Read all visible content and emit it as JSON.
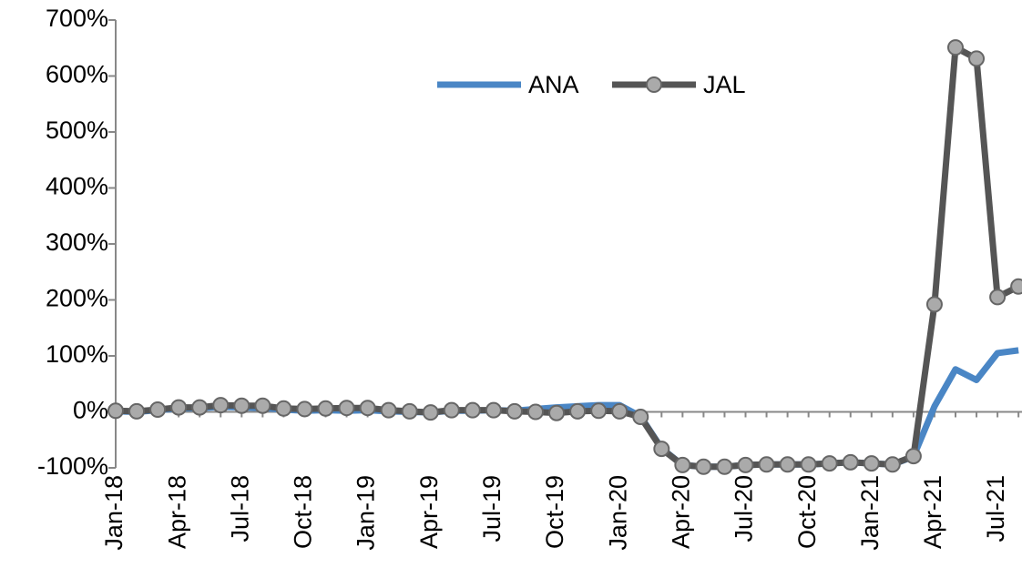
{
  "chart_data": {
    "type": "line",
    "categories": [
      "Jan-18",
      null,
      null,
      "Apr-18",
      null,
      null,
      "Jul-18",
      null,
      null,
      "Oct-18",
      null,
      null,
      "Jan-19",
      null,
      null,
      "Apr-19",
      null,
      null,
      "Jul-19",
      null,
      null,
      "Oct-19",
      null,
      null,
      "Jan-20",
      null,
      null,
      "Apr-20",
      null,
      null,
      "Jul-20",
      null,
      null,
      "Oct-20",
      null,
      null,
      "Jan-21",
      null,
      null,
      "Apr-21",
      null,
      null,
      "Jul-21",
      null
    ],
    "series": [
      {
        "name": "ANA",
        "color": "#4a86c5",
        "values": [
          1,
          0,
          3,
          6,
          7,
          9,
          8,
          7,
          4,
          2,
          3,
          2,
          3,
          1,
          0,
          -1,
          2,
          2,
          3,
          2,
          5,
          8,
          10,
          12,
          12,
          -8,
          -65,
          -95,
          -98,
          -98,
          -95,
          -94,
          -94,
          -94,
          -92,
          -90,
          -92,
          -94,
          -80,
          10,
          76,
          57,
          105,
          110
        ]
      },
      {
        "name": "JAL",
        "color": "#555555",
        "marker_color": "#aaaaaa",
        "values": [
          2,
          1,
          4,
          8,
          8,
          12,
          11,
          11,
          6,
          5,
          6,
          7,
          7,
          3,
          1,
          -1,
          3,
          3,
          3,
          1,
          0,
          -2,
          1,
          2,
          1,
          -9,
          -66,
          -95,
          -98,
          -98,
          -95,
          -94,
          -94,
          -94,
          -92,
          -90,
          -92,
          -94,
          -79,
          192,
          651,
          631,
          205,
          224
        ]
      }
    ],
    "ylim": [
      -100,
      700
    ],
    "yticks": [
      {
        "value": -100,
        "label": "-100%"
      },
      {
        "value": 0,
        "label": "0%"
      },
      {
        "value": 100,
        "label": "100%"
      },
      {
        "value": 200,
        "label": "200%"
      },
      {
        "value": 300,
        "label": "300%"
      },
      {
        "value": 400,
        "label": "400%"
      },
      {
        "value": 500,
        "label": "500%"
      },
      {
        "value": 600,
        "label": "600%"
      },
      {
        "value": 700,
        "label": "700%"
      }
    ],
    "legend": "top"
  }
}
